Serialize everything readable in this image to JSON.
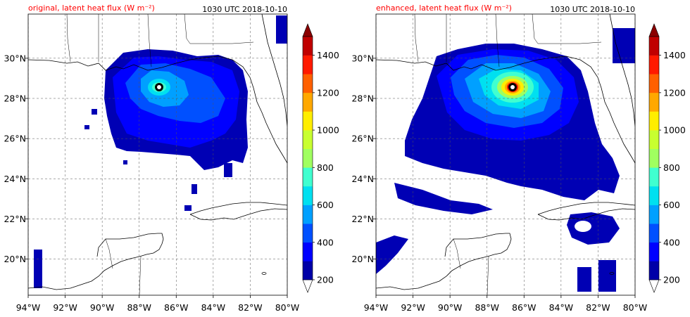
{
  "chart_data": [
    {
      "type": "heatmap",
      "title": "original, latent heat flux (W m⁻²)",
      "title_right": "1030 UTC 2018-10-10",
      "title_color": "#ff0000",
      "xlim": [
        -94,
        -80
      ],
      "ylim": [
        18.2,
        32.2
      ],
      "xticks": [
        -94,
        -92,
        -90,
        -88,
        -86,
        -84,
        -82,
        -80
      ],
      "xtick_labels": [
        "94°W",
        "92°W",
        "90°W",
        "88°W",
        "86°W",
        "84°W",
        "82°W",
        "80°W"
      ],
      "yticks": [
        20,
        22,
        24,
        26,
        28,
        30
      ],
      "ytick_labels": [
        "20°N",
        "22°N",
        "24°N",
        "26°N",
        "28°N",
        "30°N"
      ],
      "grid": true,
      "hurricane_center": [
        -86.9,
        28.7
      ],
      "max_level": 800
    },
    {
      "type": "heatmap",
      "title": "enhanced, latent heat flux (W m⁻²)",
      "title_right": "1030 UTC 2018-10-10",
      "title_color": "#ff0000",
      "xlim": [
        -94,
        -80
      ],
      "ylim": [
        18.2,
        32.2
      ],
      "xticks": [
        -94,
        -92,
        -90,
        -88,
        -86,
        -84,
        -82,
        -80
      ],
      "xtick_labels": [
        "94°W",
        "92°W",
        "90°W",
        "88°W",
        "86°W",
        "84°W",
        "82°W",
        "80°W"
      ],
      "yticks": [
        20,
        22,
        24,
        26,
        28,
        30
      ],
      "ytick_labels": [
        "20°N",
        "22°N",
        "24°N",
        "26°N",
        "28°N",
        "30°N"
      ],
      "grid": true,
      "hurricane_center": [
        -86.4,
        28.7
      ],
      "max_level": 1400
    }
  ],
  "colorbar": {
    "levels": [
      200,
      300,
      400,
      500,
      600,
      700,
      800,
      900,
      1000,
      1100,
      1200,
      1300,
      1400,
      1500
    ],
    "tick_values": [
      200,
      400,
      600,
      800,
      1000,
      1200,
      1400
    ],
    "tick_labels": [
      "200",
      "400",
      "600",
      "800",
      "1000",
      "1200",
      "1400"
    ],
    "colors": [
      "#0000a8",
      "#0000ff",
      "#0050ff",
      "#00a0ff",
      "#00e0f0",
      "#40ffd0",
      "#a0ff60",
      "#c8ff30",
      "#ffee00",
      "#ffa800",
      "#ff6000",
      "#ff1a00",
      "#c00000"
    ],
    "extend_min_color": "#ffffff",
    "extend_max_color": "#8b0000"
  }
}
